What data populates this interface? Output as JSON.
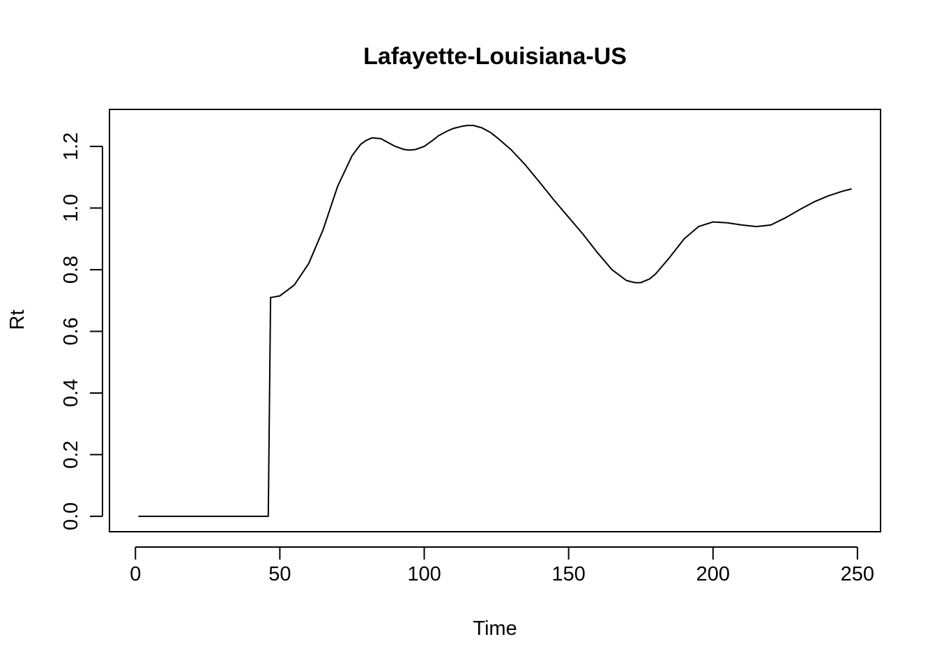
{
  "chart_data": {
    "type": "line",
    "title": "Lafayette-Louisiana-US",
    "xlabel": "Time",
    "ylabel": "Rt",
    "xlim": [
      -9,
      258
    ],
    "ylim": [
      -0.05,
      1.32
    ],
    "x_ticks": [
      0,
      50,
      100,
      150,
      200,
      250
    ],
    "x_tick_labels": [
      "0",
      "50",
      "100",
      "150",
      "200",
      "250"
    ],
    "y_ticks": [
      0.0,
      0.2,
      0.4,
      0.6,
      0.8,
      1.0,
      1.2
    ],
    "y_tick_labels": [
      "0.0",
      "0.2",
      "0.4",
      "0.6",
      "0.8",
      "1.0",
      "1.2"
    ],
    "grid": false,
    "legend": "none",
    "line_color": "#000000",
    "series": [
      {
        "x": [
          1,
          46,
          46.8,
          47,
          50,
          55,
          60,
          65,
          70,
          72,
          75,
          78,
          80,
          82,
          85,
          88,
          90,
          93,
          95,
          97,
          100,
          103,
          105,
          108,
          110,
          113,
          115,
          117,
          120,
          123,
          125,
          130,
          135,
          140,
          145,
          150,
          155,
          160,
          165,
          170,
          173,
          175,
          178,
          180,
          185,
          190,
          195,
          200,
          205,
          210,
          215,
          220,
          225,
          230,
          235,
          240,
          245,
          248
        ],
        "y": [
          0.0,
          0.0,
          0.71,
          0.71,
          0.715,
          0.75,
          0.82,
          0.93,
          1.07,
          1.11,
          1.17,
          1.207,
          1.22,
          1.228,
          1.225,
          1.21,
          1.2,
          1.19,
          1.188,
          1.19,
          1.2,
          1.22,
          1.235,
          1.25,
          1.258,
          1.265,
          1.268,
          1.268,
          1.26,
          1.245,
          1.23,
          1.19,
          1.14,
          1.083,
          1.025,
          0.97,
          0.915,
          0.855,
          0.8,
          0.765,
          0.758,
          0.758,
          0.77,
          0.785,
          0.84,
          0.9,
          0.94,
          0.955,
          0.952,
          0.945,
          0.94,
          0.945,
          0.968,
          0.995,
          1.02,
          1.04,
          1.055,
          1.062
        ]
      }
    ]
  }
}
